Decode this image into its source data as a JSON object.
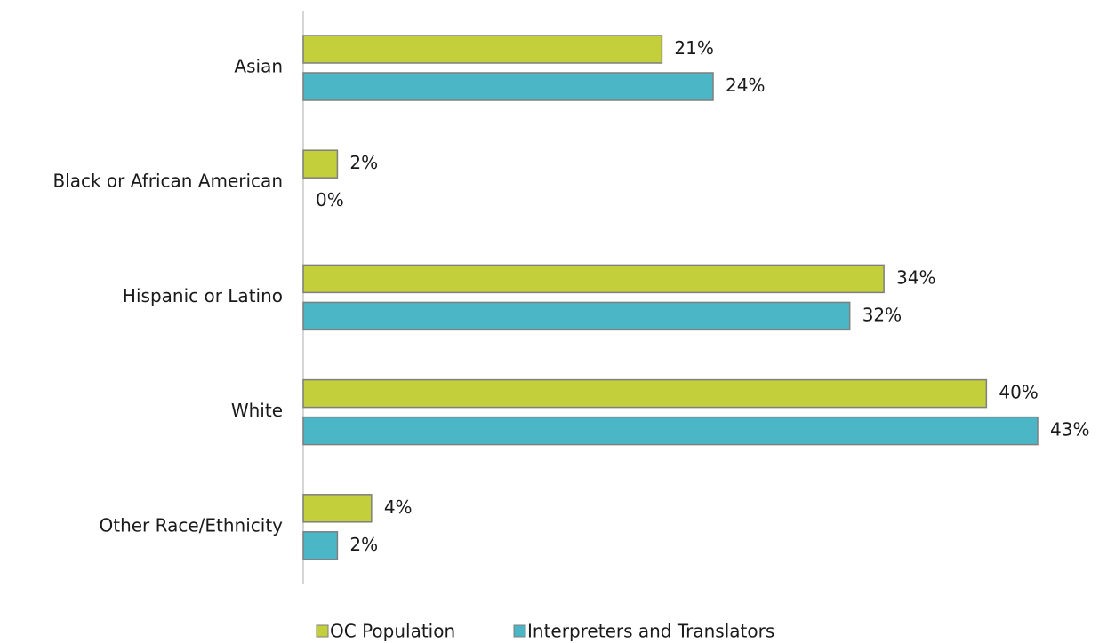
{
  "chart_data": {
    "type": "bar",
    "orientation": "horizontal",
    "categories": [
      "Asian",
      "Black or African American",
      "Hispanic or Latino",
      "White",
      "Other Race/Ethnicity"
    ],
    "series": [
      {
        "name": "OC Population",
        "color": "#c3cf3b",
        "values": [
          21,
          2,
          34,
          40,
          4
        ],
        "value_labels": [
          "21%",
          "2%",
          "34%",
          "40%",
          "4%"
        ]
      },
      {
        "name": "Interpreters and Translators",
        "color": "#4bb6c6",
        "values": [
          24,
          0,
          32,
          43,
          2
        ],
        "value_labels": [
          "24%",
          "0%",
          "32%",
          "43%",
          "2%"
        ]
      }
    ],
    "legend": "bottom"
  }
}
